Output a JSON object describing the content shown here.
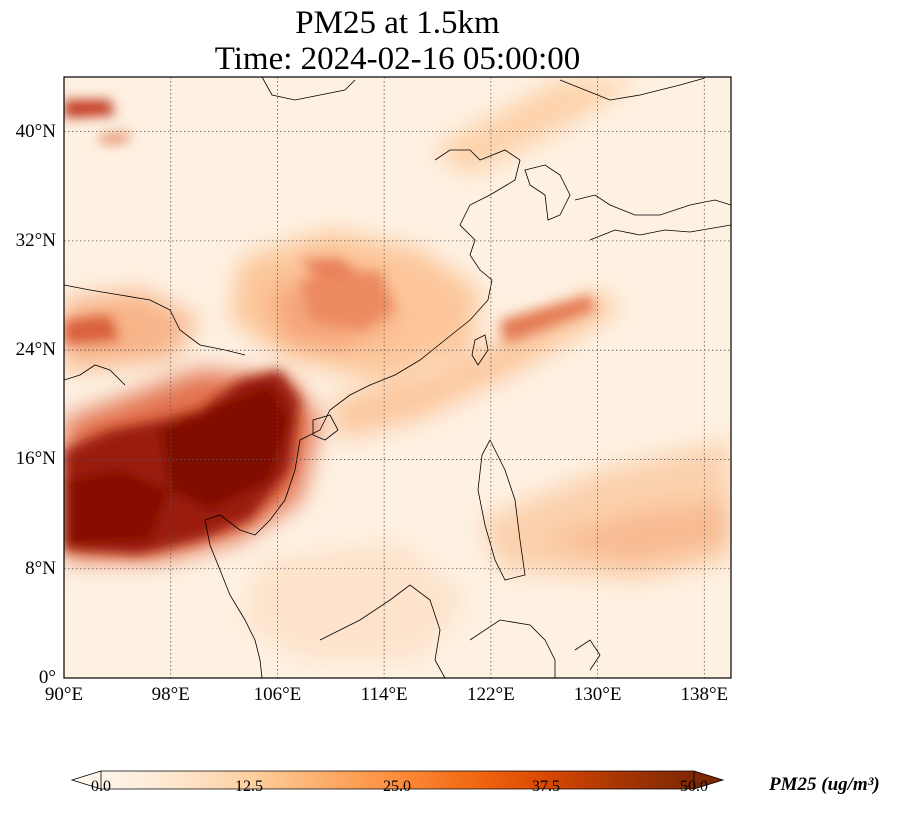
{
  "title_line1": "PM25 at 1.5km",
  "title_line2": "Time: 2024-02-16 05:00:00",
  "map": {
    "lon_range": [
      90,
      140
    ],
    "lat_range": [
      0,
      44
    ],
    "lat_ticks": [
      {
        "value": 0,
        "label": "0°"
      },
      {
        "value": 8,
        "label": "8°N"
      },
      {
        "value": 16,
        "label": "16°N"
      },
      {
        "value": 24,
        "label": "24°N"
      },
      {
        "value": 32,
        "label": "32°N"
      },
      {
        "value": 40,
        "label": "40°N"
      }
    ],
    "lon_ticks": [
      {
        "value": 90,
        "label": "90°E"
      },
      {
        "value": 98,
        "label": "98°E"
      },
      {
        "value": 106,
        "label": "106°E"
      },
      {
        "value": 114,
        "label": "114°E"
      },
      {
        "value": 122,
        "label": "122°E"
      },
      {
        "value": 130,
        "label": "130°E"
      },
      {
        "value": 138,
        "label": "138°E"
      }
    ],
    "gridlines": true
  },
  "colorbar": {
    "label": "PM25 (ug/m³)",
    "range": [
      0.0,
      50.0
    ],
    "ticks": [
      "0.0",
      "12.5",
      "25.0",
      "37.5",
      "50.0"
    ],
    "colormap": [
      "#fff5eb",
      "#fee6ce",
      "#fdd0a2",
      "#fdae6b",
      "#fd8d3c",
      "#f16913",
      "#d94801",
      "#a63603",
      "#7f2704"
    ],
    "extend": "both"
  }
}
